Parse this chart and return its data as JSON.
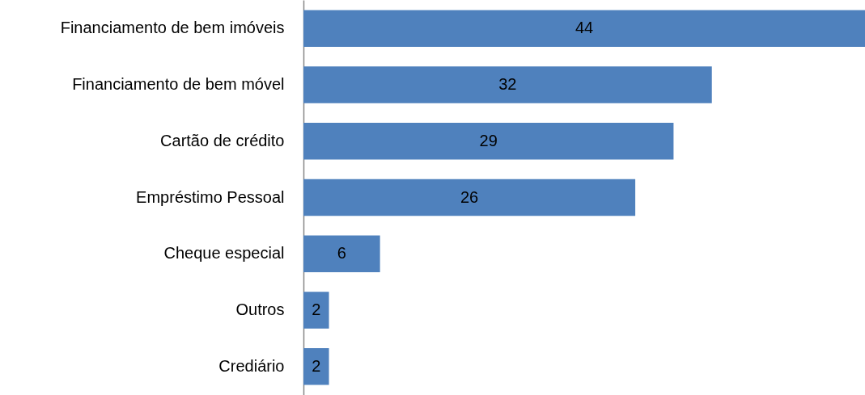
{
  "chart_data": {
    "type": "bar",
    "orientation": "horizontal",
    "categories": [
      "Financiamento de bem imóveis",
      "Financiamento de bem móvel",
      "Cartão de crédito",
      "Empréstimo Pessoal",
      "Cheque especial",
      "Outros",
      "Crediário"
    ],
    "values": [
      44,
      32,
      29,
      26,
      6,
      2,
      2
    ],
    "color": "#4f81bd",
    "data_labels": true,
    "tick_labels": "y"
  }
}
